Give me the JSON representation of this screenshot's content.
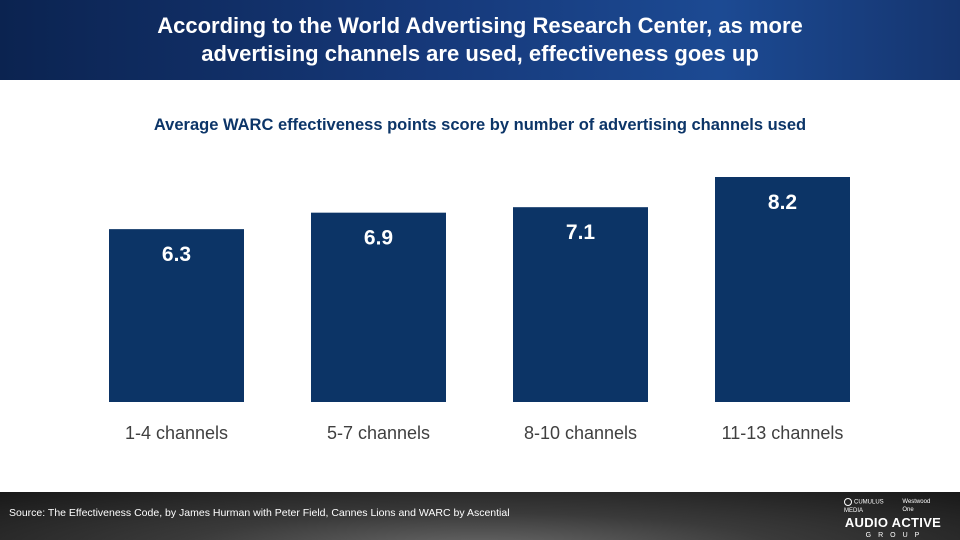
{
  "header": {
    "title_line1": "According to the World Advertising Research Center, as more",
    "title_line2": "advertising channels are used, effectiveness goes up"
  },
  "colors": {
    "bar": "#0c3466",
    "header": "#16397a",
    "label_gray": "#404040"
  },
  "chart_data": {
    "type": "bar",
    "title": "Average WARC effectiveness points score by number of advertising channels used",
    "categories": [
      "1-4 channels",
      "5-7 channels",
      "8-10 channels",
      "11-13 channels"
    ],
    "values": [
      6.3,
      6.9,
      7.1,
      8.2
    ],
    "ylim": [
      0,
      8.2
    ],
    "grid": false,
    "data_labels": true
  },
  "footer": {
    "source": "Source: The Effectiveness Code, by James Hurman with Peter Field, Cannes Lions and WARC by Ascential",
    "logo_brand_left": "CUMULUS MEDIA",
    "logo_brand_right": "Westwood One",
    "logo_main": "AUDIO ACTIVE",
    "logo_sub": "GROUP"
  }
}
